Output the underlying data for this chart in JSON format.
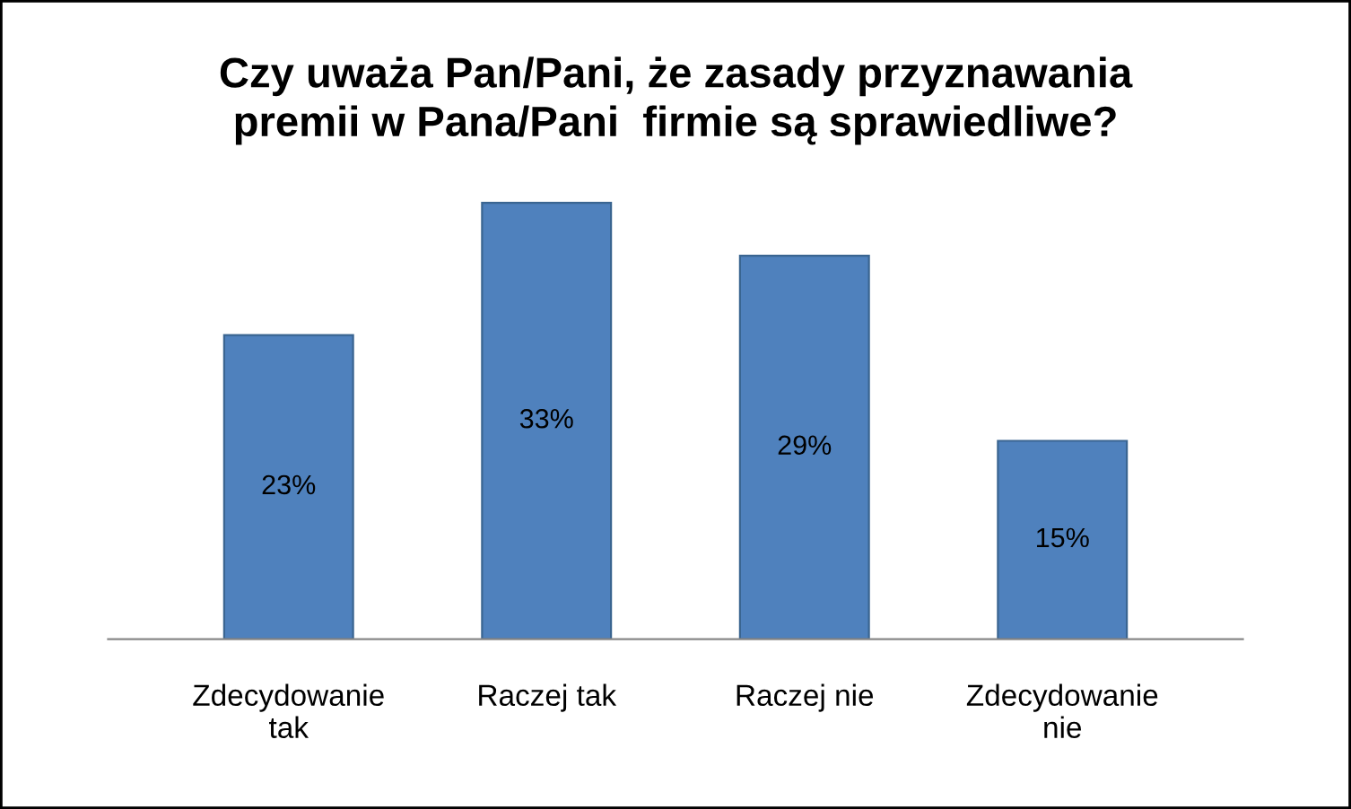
{
  "chart_data": {
    "type": "bar",
    "title": "Czy uważa Pan/Pani, że zasady przyznawania\npremii w Pana/Pani  firmie są sprawiedliwe?",
    "categories": [
      "Zdecydowanie\ntak",
      "Raczej tak",
      "Raczej nie",
      "Zdecydowanie\nnie"
    ],
    "values": [
      23,
      33,
      29,
      15
    ],
    "value_labels": [
      "23%",
      "33%",
      "29%",
      "15%"
    ],
    "color": "#4f81bd",
    "grid": false,
    "legend": false
  }
}
